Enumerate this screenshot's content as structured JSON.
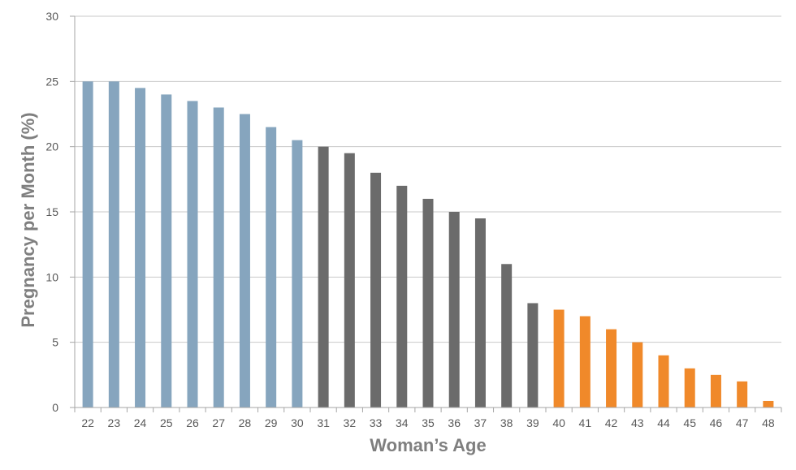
{
  "chart_data": {
    "type": "bar",
    "title": "",
    "xlabel": "Woman’s Age",
    "ylabel": "Pregnancy per Month (%)",
    "ylim": [
      0,
      30
    ],
    "yticks": [
      0,
      5,
      10,
      15,
      20,
      25,
      30
    ],
    "grid": "horizontal",
    "legend": "none",
    "categories": [
      "22",
      "23",
      "24",
      "25",
      "26",
      "27",
      "28",
      "29",
      "30",
      "31",
      "32",
      "33",
      "34",
      "35",
      "36",
      "37",
      "38",
      "39",
      "40",
      "41",
      "42",
      "43",
      "44",
      "45",
      "46",
      "47",
      "48"
    ],
    "values": [
      25,
      25,
      24.5,
      24,
      23.5,
      23,
      22.5,
      21.5,
      20.5,
      20,
      19.5,
      18,
      17,
      16,
      15,
      14.5,
      11,
      8,
      7.5,
      7,
      6,
      5,
      4,
      3,
      2.5,
      2,
      0.5
    ],
    "bar_colors": {
      "blue": "#86a5be",
      "gray": "#6b6b6b",
      "orange": "#f0892a"
    },
    "color_groups": [
      {
        "color": "blue",
        "from": "22",
        "to": "30"
      },
      {
        "color": "gray",
        "from": "31",
        "to": "39"
      },
      {
        "color": "orange",
        "from": "40",
        "to": "48"
      }
    ]
  }
}
